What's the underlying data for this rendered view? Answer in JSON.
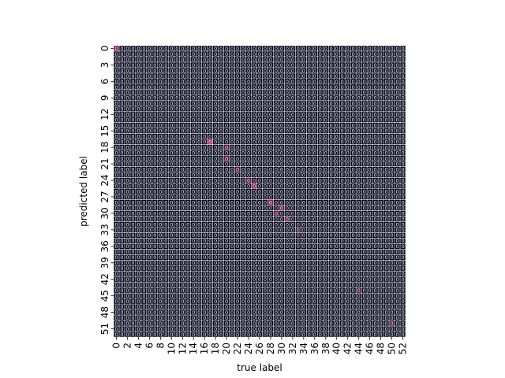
{
  "chart_data": {
    "type": "heatmap",
    "title": "",
    "xlabel": "true label",
    "ylabel": "predicted label",
    "rows": 53,
    "cols": 53,
    "x_tick_labels": [
      "0",
      "2",
      "4",
      "6",
      "8",
      "10",
      "12",
      "14",
      "16",
      "18",
      "20",
      "22",
      "24",
      "26",
      "28",
      "30",
      "32",
      "34",
      "36",
      "38",
      "40",
      "42",
      "44",
      "46",
      "48",
      "50",
      "52"
    ],
    "y_tick_labels": [
      "0",
      "3",
      "6",
      "9",
      "12",
      "15",
      "18",
      "21",
      "24",
      "27",
      "30",
      "33",
      "36",
      "39",
      "42",
      "45",
      "48",
      "51"
    ],
    "cell_annotations": "integer counts in every cell (mostly 0, largely illegible)",
    "colormap": "dark (rocket-like): near-black for 0, magenta/pink for higher counts",
    "highlighted_cells": [
      {
        "row": 0,
        "col": 0,
        "intensity": 0.35
      },
      {
        "row": 17,
        "col": 17,
        "intensity": 0.55
      },
      {
        "row": 18,
        "col": 20,
        "intensity": 0.25
      },
      {
        "row": 20,
        "col": 20,
        "intensity": 0.3
      },
      {
        "row": 22,
        "col": 22,
        "intensity": 0.25
      },
      {
        "row": 24,
        "col": 24,
        "intensity": 0.3
      },
      {
        "row": 25,
        "col": 25,
        "intensity": 0.45
      },
      {
        "row": 28,
        "col": 28,
        "intensity": 0.45
      },
      {
        "row": 29,
        "col": 30,
        "intensity": 0.35
      },
      {
        "row": 30,
        "col": 29,
        "intensity": 0.25
      },
      {
        "row": 31,
        "col": 31,
        "intensity": 0.3
      },
      {
        "row": 33,
        "col": 33,
        "intensity": 0.2
      },
      {
        "row": 44,
        "col": 44,
        "intensity": 0.2
      },
      {
        "row": 50,
        "col": 50,
        "intensity": 0.2
      }
    ],
    "background_color": "#03051a",
    "grid_line_color": "#ffffff"
  }
}
